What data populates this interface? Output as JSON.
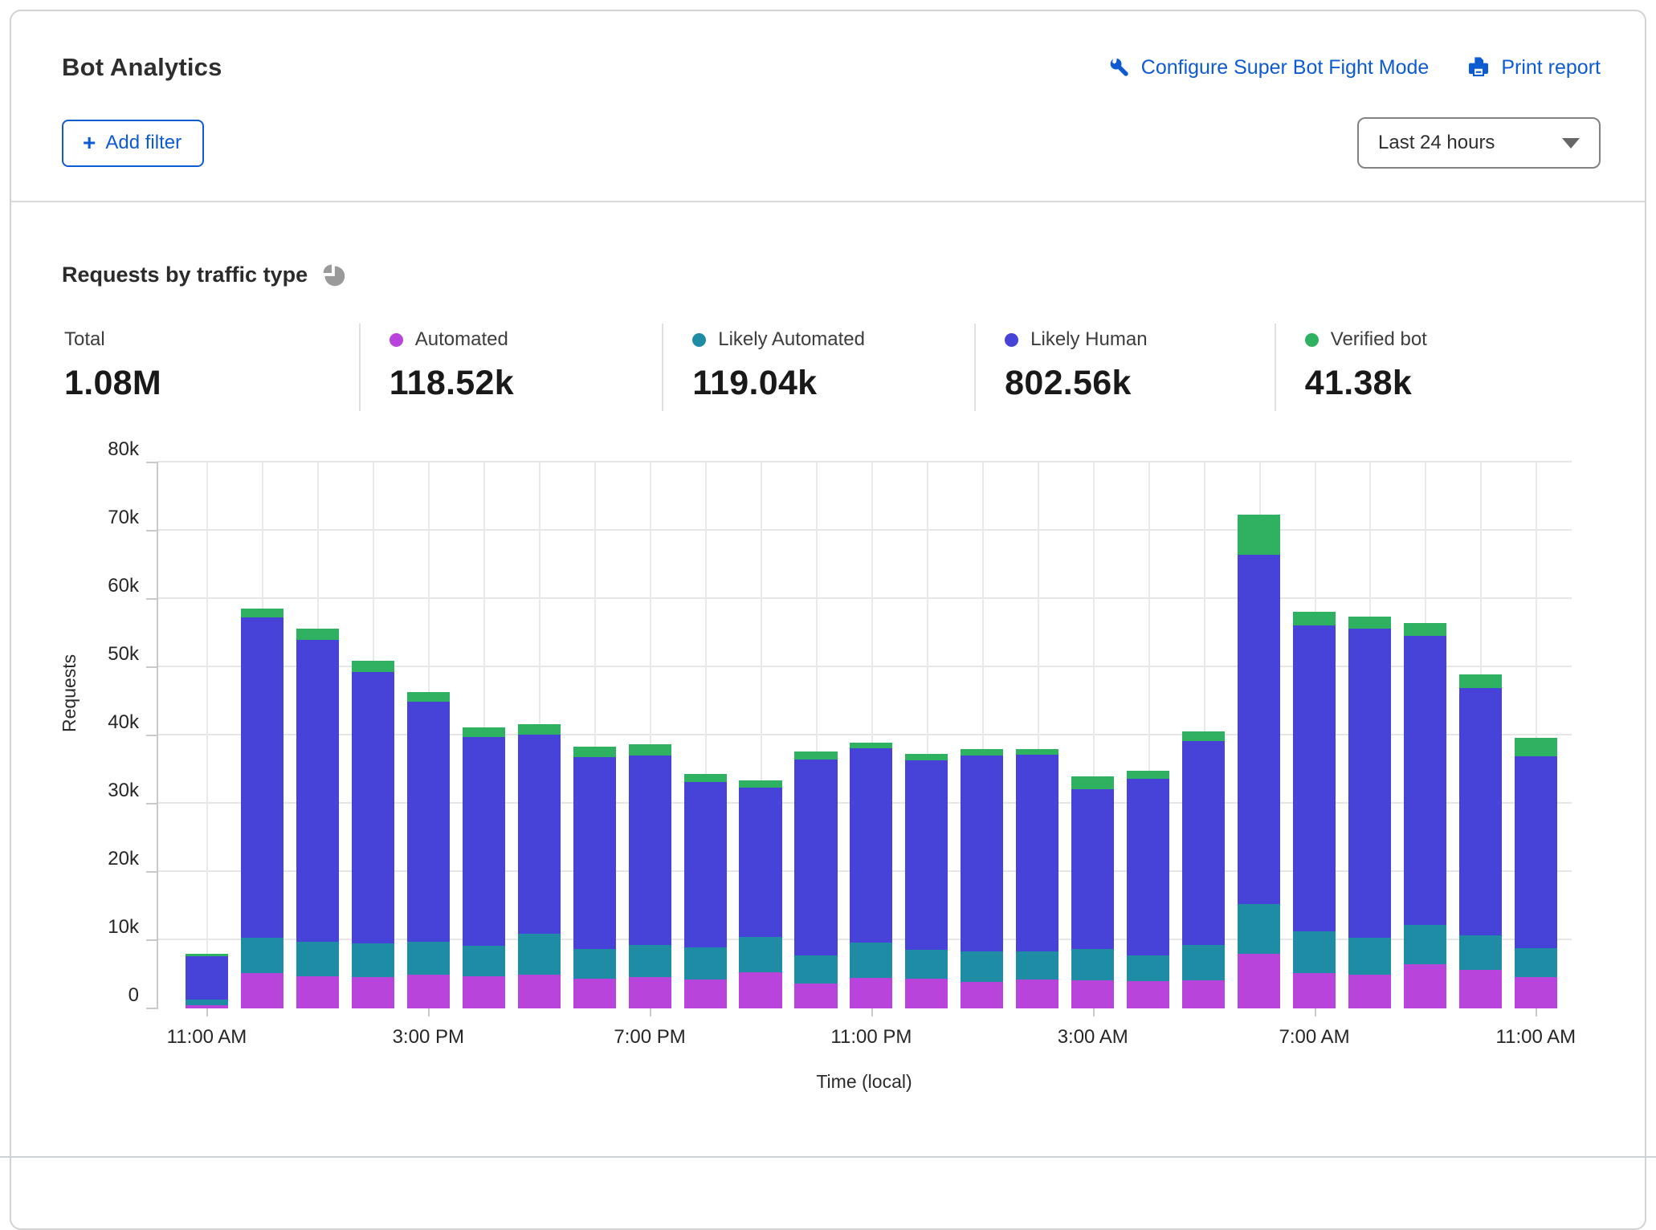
{
  "header": {
    "title": "Bot Analytics",
    "configure_link": "Configure Super Bot Fight Mode",
    "print_link": "Print report",
    "add_filter_plus": "+",
    "add_filter_label": "Add filter",
    "time_range_selected": "Last 24 hours"
  },
  "section": {
    "title": "Requests by traffic type"
  },
  "stats": [
    {
      "label": "Total",
      "value": "1.08M",
      "color": ""
    },
    {
      "label": "Automated",
      "value": "118.52k",
      "color": "#b944db"
    },
    {
      "label": "Likely Automated",
      "value": "119.04k",
      "color": "#1f8ca6"
    },
    {
      "label": "Likely Human",
      "value": "802.56k",
      "color": "#4743d9"
    },
    {
      "label": "Verified bot",
      "value": "41.38k",
      "color": "#2fb162"
    }
  ],
  "chart_data": {
    "type": "bar",
    "stacked": true,
    "title": "Requests by traffic type",
    "xlabel": "Time (local)",
    "ylabel": "Requests",
    "grid": true,
    "legend_position": "stats-row-above-chart",
    "value_unit": "thousands of requests",
    "ylim_k": [
      0,
      80
    ],
    "y_tick_labels": [
      "0",
      "10k",
      "20k",
      "30k",
      "40k",
      "50k",
      "60k",
      "70k",
      "80k"
    ],
    "x_tick_indices": [
      0,
      4,
      8,
      12,
      16,
      20,
      24
    ],
    "x_tick_labels": [
      "11:00 AM",
      "3:00 PM",
      "7:00 PM",
      "11:00 PM",
      "3:00 AM",
      "7:00 AM",
      "11:00 AM"
    ],
    "categories": [
      "11:00 AM",
      "12:00 PM",
      "1:00 PM",
      "2:00 PM",
      "3:00 PM",
      "4:00 PM",
      "5:00 PM",
      "6:00 PM",
      "7:00 PM",
      "8:00 PM",
      "9:00 PM",
      "10:00 PM",
      "11:00 PM",
      "12:00 AM",
      "1:00 AM",
      "2:00 AM",
      "3:00 AM",
      "4:00 AM",
      "5:00 AM",
      "6:00 AM",
      "7:00 AM",
      "8:00 AM",
      "9:00 AM",
      "10:00 AM",
      "11:00 AM"
    ],
    "series": [
      {
        "name": "Automated",
        "color": "#b944db",
        "values_k": [
          0.5,
          5.2,
          4.7,
          4.6,
          4.9,
          4.7,
          4.9,
          4.3,
          4.6,
          4.2,
          5.3,
          3.6,
          4.5,
          4.3,
          3.9,
          4.2,
          4.1,
          4.0,
          4.1,
          8.0,
          5.2,
          4.9,
          6.5,
          5.6,
          4.6
        ]
      },
      {
        "name": "Likely Automated",
        "color": "#1f8ca6",
        "values_k": [
          0.8,
          5.2,
          5.1,
          4.9,
          4.9,
          4.5,
          6.0,
          4.4,
          4.7,
          4.8,
          5.2,
          4.2,
          5.1,
          4.3,
          4.5,
          4.1,
          4.6,
          3.8,
          5.2,
          7.3,
          6.1,
          5.5,
          5.7,
          5.1,
          4.2
        ]
      },
      {
        "name": "Likely Human",
        "color": "#4743d9",
        "values_k": [
          6.4,
          46.9,
          44.2,
          39.8,
          35.1,
          30.6,
          29.2,
          28.1,
          27.8,
          24.2,
          21.9,
          28.7,
          28.5,
          27.8,
          28.7,
          28.9,
          23.4,
          25.9,
          29.9,
          51.2,
          44.8,
          45.3,
          42.4,
          36.2,
          28.2
        ]
      },
      {
        "name": "Verified bot",
        "color": "#2fb162",
        "values_k": [
          0.3,
          1.3,
          1.7,
          1.7,
          1.4,
          1.4,
          1.6,
          1.6,
          1.6,
          1.1,
          1.0,
          1.2,
          0.9,
          0.9,
          0.9,
          0.8,
          1.9,
          1.1,
          1.4,
          5.9,
          2.0,
          1.7,
          1.9,
          2.1,
          2.6
        ]
      }
    ],
    "totals_k": [
      8.0,
      58.6,
      55.7,
      51.0,
      46.3,
      41.2,
      41.7,
      38.4,
      38.7,
      34.3,
      33.4,
      37.7,
      39.0,
      37.3,
      38.0,
      38.0,
      34.0,
      34.8,
      40.6,
      72.4,
      58.1,
      57.4,
      56.5,
      49.0,
      39.6
    ]
  }
}
